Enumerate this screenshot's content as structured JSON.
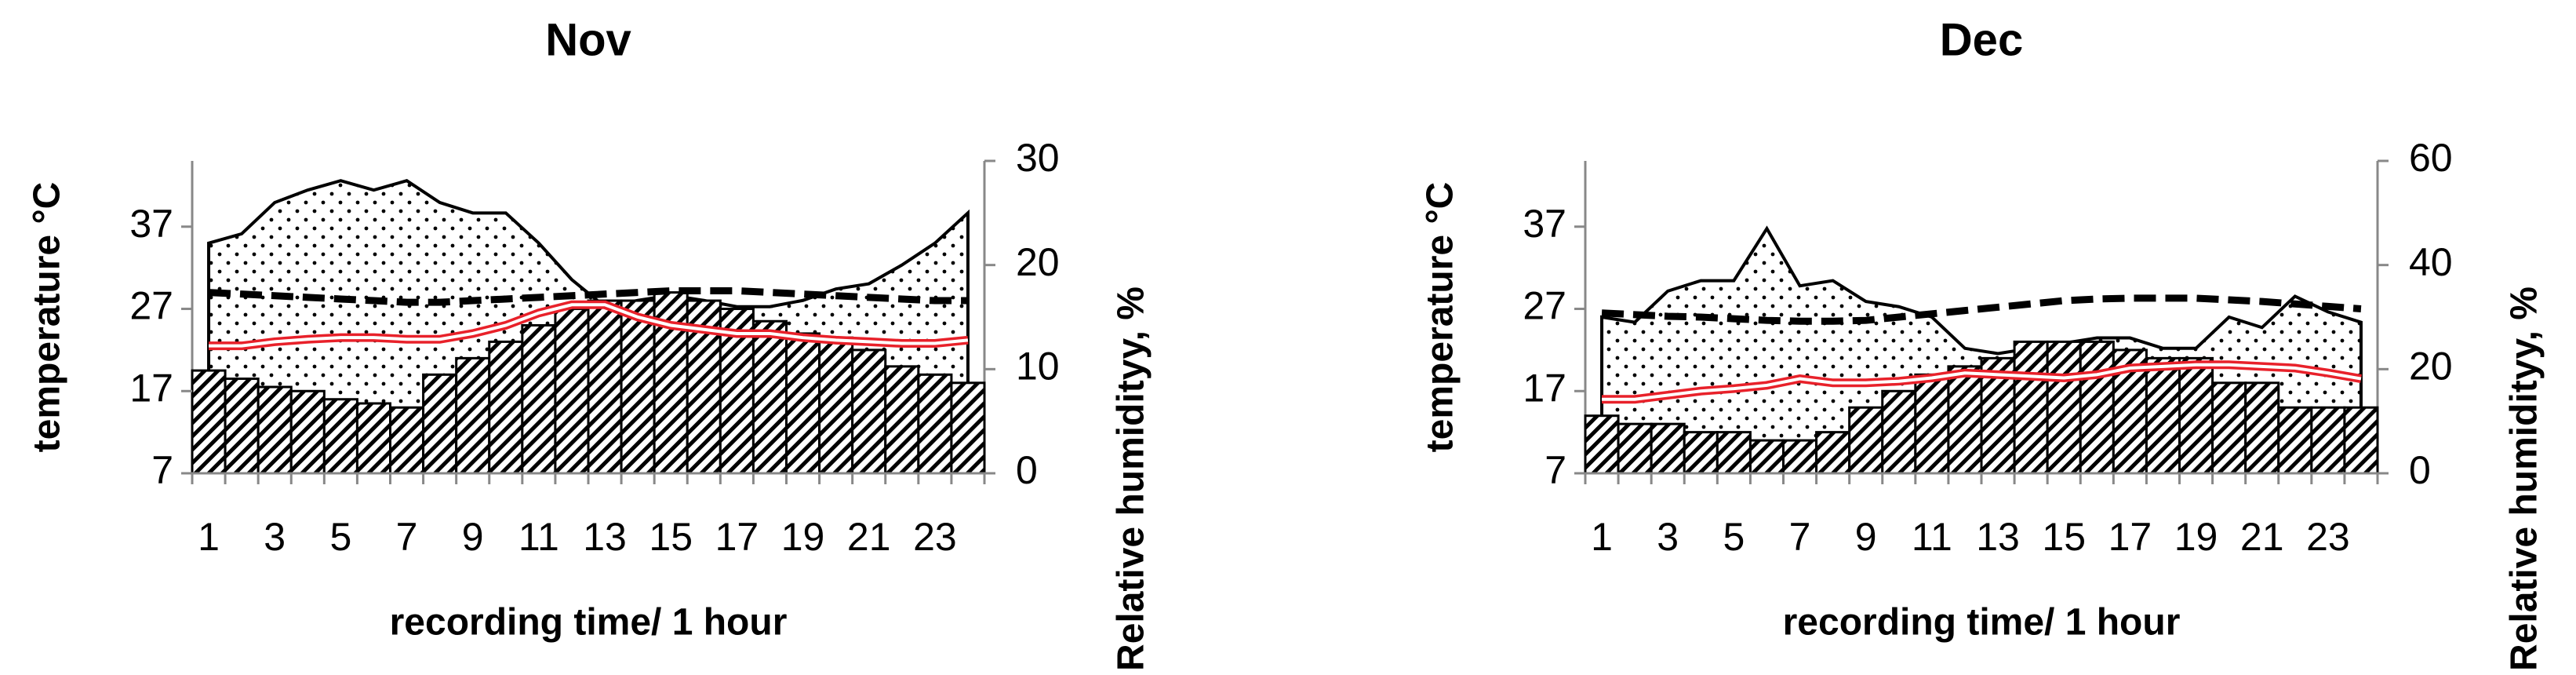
{
  "chart_data": [
    {
      "type": "combo",
      "title": "Nov",
      "x_label": "recording time/ 1 hour",
      "y_label": "temperature °C",
      "y2_label": "Relative humidityy, %",
      "categories": [
        1,
        null,
        3,
        null,
        5,
        null,
        7,
        null,
        9,
        null,
        11,
        null,
        13,
        null,
        15,
        null,
        17,
        null,
        19,
        null,
        21,
        null,
        23,
        null
      ],
      "ylim": [
        7,
        45
      ],
      "yticks": [
        7,
        17,
        27,
        37
      ],
      "y2lim": [
        0,
        30
      ],
      "y2ticks": [
        0,
        10,
        20,
        30
      ],
      "series": [
        {
          "type": "area",
          "axis": "y2",
          "color": "#000000",
          "values": [
            22.1,
            23,
            26,
            27.2,
            28.1,
            27.2,
            28.1,
            26,
            25,
            25,
            22.1,
            18.6,
            16,
            16.6,
            17.1,
            16.6,
            16,
            16,
            16.6,
            17.7,
            18.2,
            20,
            22.1,
            25
          ]
        },
        {
          "type": "bar",
          "color": "#000000",
          "values": [
            19.5,
            18.5,
            17.5,
            17,
            16,
            15.5,
            15,
            19,
            21,
            23,
            25,
            27,
            28,
            28,
            29,
            28,
            27,
            25.5,
            24,
            23.5,
            22,
            20,
            19,
            18
          ]
        },
        {
          "type": "line",
          "style": "dashed",
          "color": "#000000",
          "values": [
            29,
            28.8,
            28.6,
            28.4,
            28.2,
            28,
            27.8,
            27.8,
            28,
            28.2,
            28.4,
            28.6,
            28.8,
            29,
            29.2,
            29.2,
            29.2,
            29,
            28.8,
            28.6,
            28.4,
            28.2,
            28,
            28
          ]
        },
        {
          "type": "line",
          "style": "double",
          "color": "#e8212a",
          "values": [
            22.5,
            22.5,
            23,
            23.3,
            23.5,
            23.5,
            23.3,
            23.3,
            24,
            25,
            26.5,
            27.5,
            27.5,
            26,
            25,
            24.5,
            24,
            24,
            23.5,
            23.2,
            23,
            22.8,
            22.8,
            23.2
          ]
        }
      ]
    },
    {
      "type": "combo",
      "title": "Dec",
      "x_label": "recording time/ 1 hour",
      "y_label": "temperature °C",
      "y2_label": "Relative humidityy, %",
      "categories": [
        1,
        null,
        3,
        null,
        5,
        null,
        7,
        null,
        9,
        null,
        11,
        null,
        13,
        null,
        15,
        null,
        17,
        null,
        19,
        null,
        21,
        null,
        23,
        null
      ],
      "ylim": [
        7,
        45
      ],
      "yticks": [
        7,
        17,
        27,
        37
      ],
      "y2lim": [
        0,
        60
      ],
      "y2ticks": [
        0,
        20,
        40,
        60
      ],
      "series": [
        {
          "type": "area",
          "axis": "y2",
          "color": "#000000",
          "values": [
            30,
            29,
            35,
            37,
            37,
            47,
            36,
            37,
            33,
            32,
            30,
            24,
            23,
            24,
            25,
            26,
            26,
            24,
            24,
            30,
            28,
            34,
            31,
            29
          ]
        },
        {
          "type": "bar",
          "color": "#000000",
          "values": [
            14,
            13,
            13,
            12,
            12,
            11,
            11,
            12,
            15,
            17,
            19,
            20,
            21,
            23,
            23,
            23,
            22,
            21,
            21,
            18,
            18,
            15,
            15,
            15
          ]
        },
        {
          "type": "line",
          "style": "dashed",
          "color": "#000000",
          "values": [
            26.5,
            26.3,
            26.1,
            26,
            25.8,
            25.6,
            25.5,
            25.5,
            25.6,
            26,
            26.4,
            26.8,
            27.2,
            27.6,
            28,
            28.2,
            28.3,
            28.3,
            28.3,
            28.1,
            27.9,
            27.6,
            27.3,
            27
          ]
        },
        {
          "type": "line",
          "style": "double",
          "color": "#e8212a",
          "values": [
            16,
            16,
            16.5,
            17,
            17.3,
            17.7,
            18.5,
            18,
            18,
            18.2,
            18.6,
            19.2,
            19,
            18.8,
            18.6,
            19,
            19.8,
            20,
            20.2,
            20.2,
            20,
            19.8,
            19.2,
            18.5
          ]
        }
      ]
    }
  ]
}
